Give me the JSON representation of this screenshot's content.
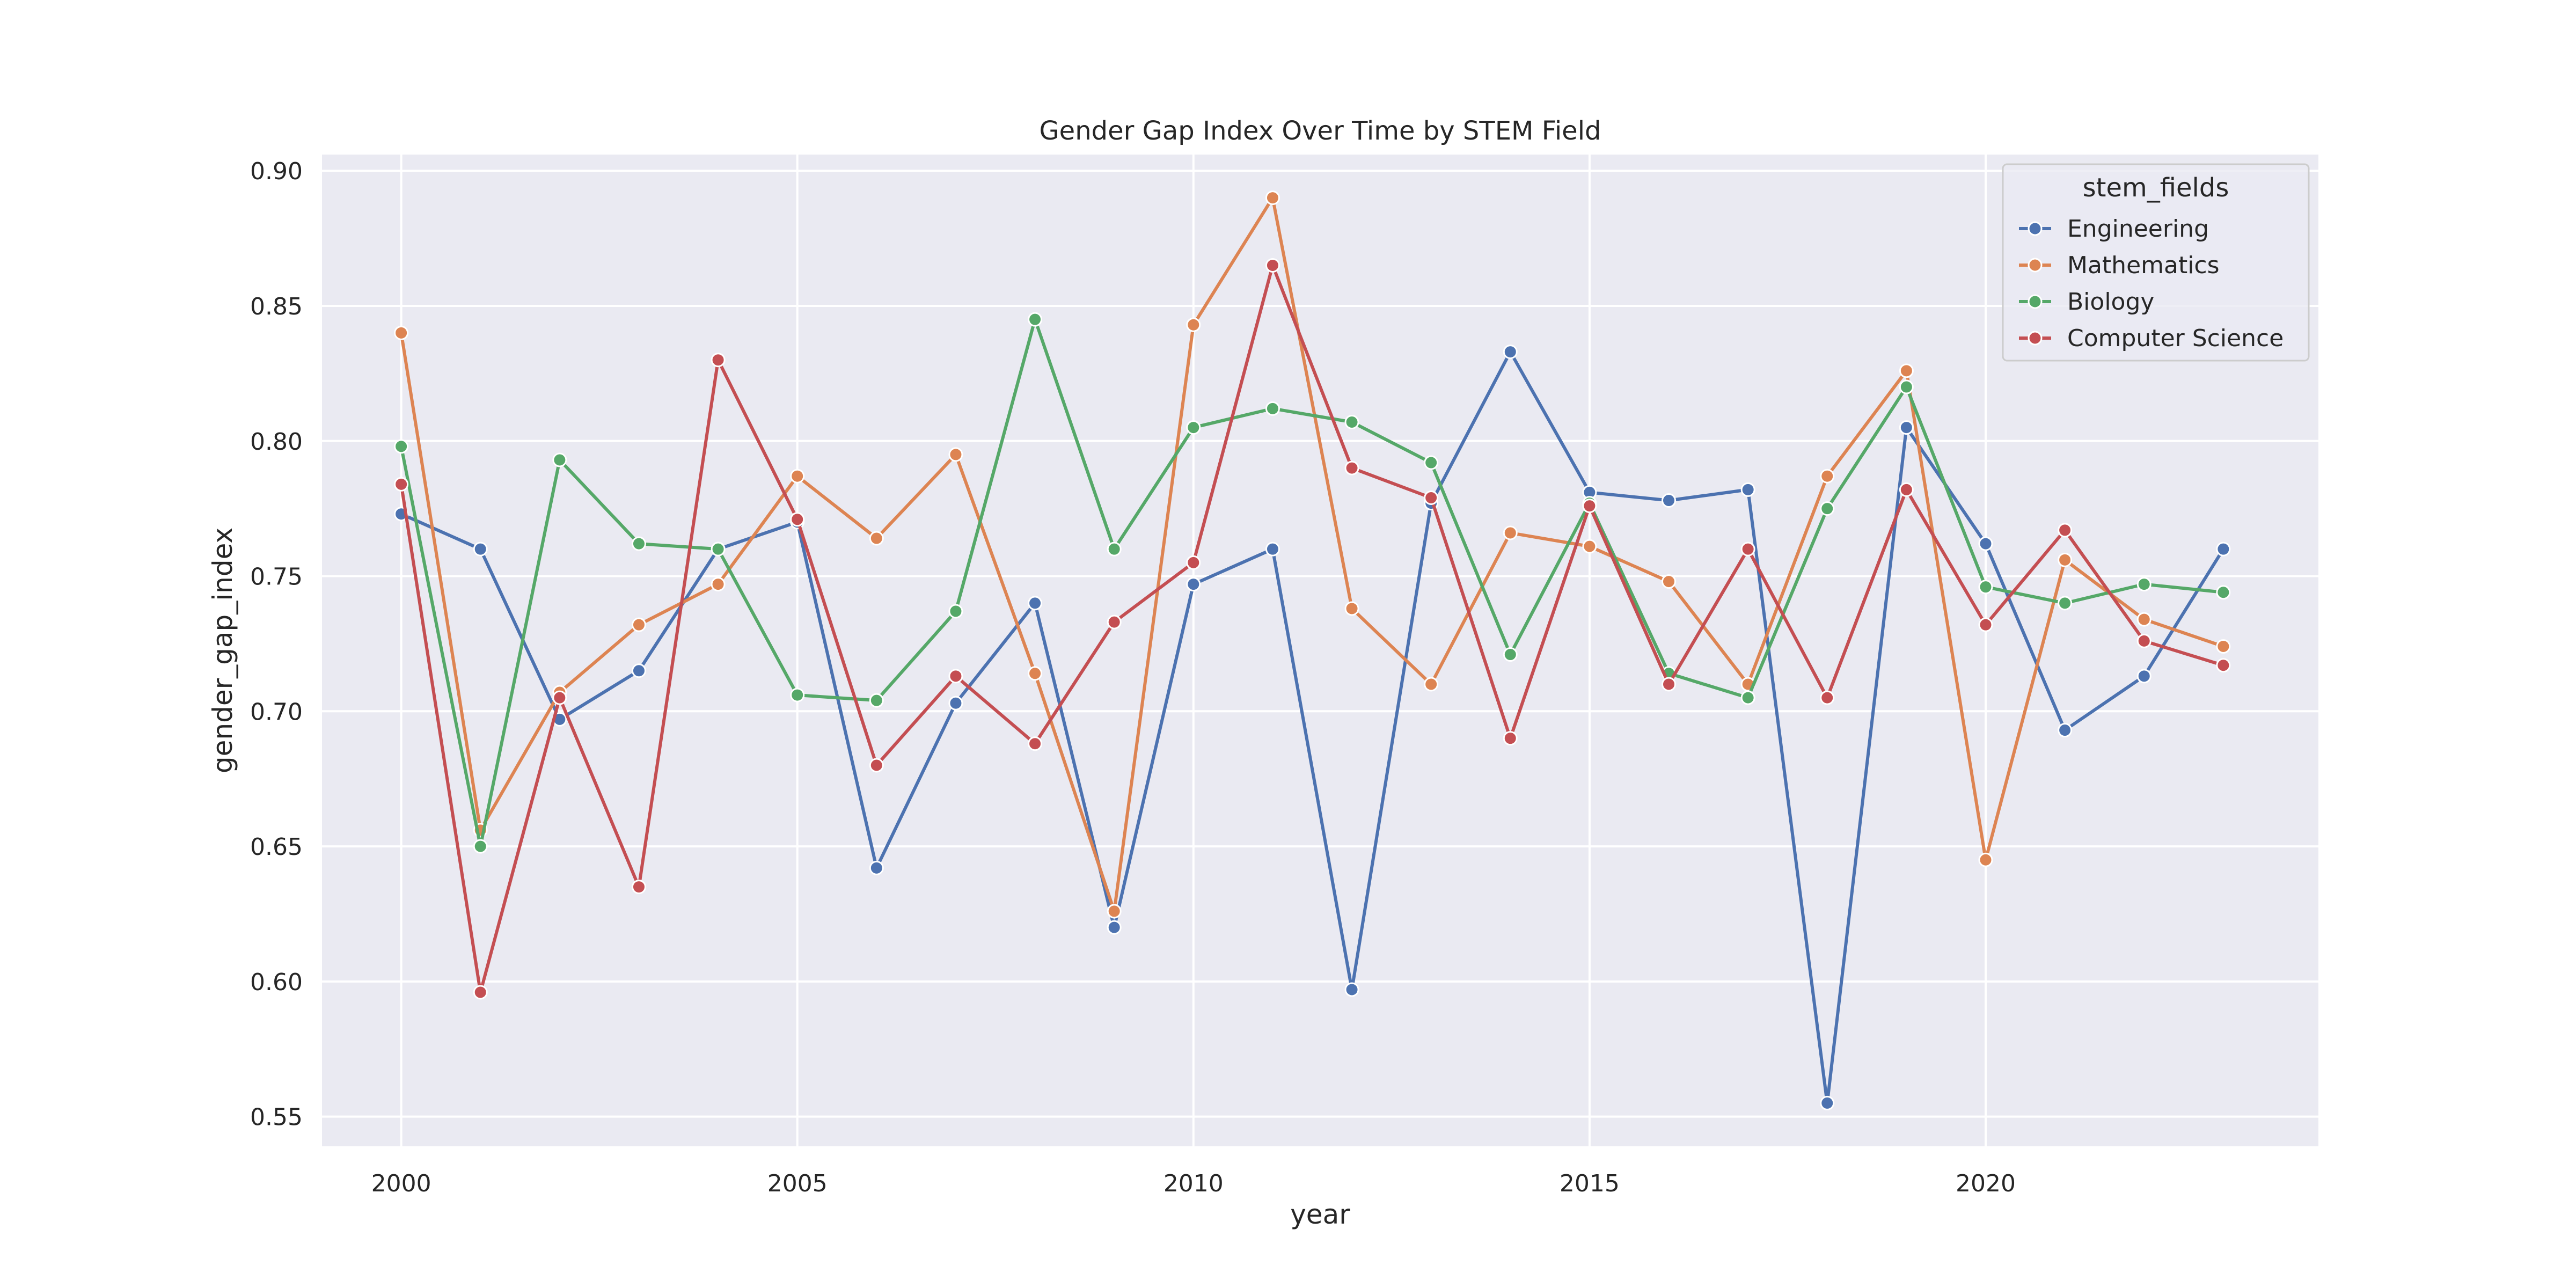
{
  "chart_data": {
    "type": "line",
    "title": "Gender Gap Index Over Time by STEM Field",
    "xlabel": "year",
    "ylabel": "gender_gap_index",
    "xlim": [
      1999,
      2024.2
    ],
    "ylim": [
      0.539,
      0.906
    ],
    "xticks": [
      2000,
      2005,
      2010,
      2015,
      2020
    ],
    "yticks": [
      0.55,
      0.6,
      0.65,
      0.7,
      0.75,
      0.8,
      0.85,
      0.9
    ],
    "ytick_labels": [
      "0.55",
      "0.60",
      "0.65",
      "0.70",
      "0.75",
      "0.80",
      "0.85",
      "0.90"
    ],
    "grid": true,
    "legend": {
      "title": "stem_fields",
      "placement": "top-right"
    },
    "x": [
      2000,
      2001,
      2002,
      2003,
      2004,
      2005,
      2006,
      2007,
      2008,
      2009,
      2010,
      2011,
      2012,
      2013,
      2014,
      2015,
      2016,
      2017,
      2018,
      2019,
      2020,
      2021,
      2022,
      2023
    ],
    "series": [
      {
        "name": "Engineering",
        "color": "#4c72b0",
        "values": [
          0.773,
          0.76,
          0.697,
          0.715,
          0.76,
          0.77,
          0.642,
          0.703,
          0.74,
          0.62,
          0.747,
          0.76,
          0.597,
          0.777,
          0.833,
          0.781,
          0.778,
          0.782,
          0.555,
          0.805,
          0.762,
          0.693,
          0.713,
          0.76
        ]
      },
      {
        "name": "Mathematics",
        "color": "#dd8452",
        "values": [
          0.84,
          0.656,
          0.707,
          0.732,
          0.747,
          0.787,
          0.764,
          0.795,
          0.714,
          0.626,
          0.843,
          0.89,
          0.738,
          0.71,
          0.766,
          0.761,
          0.748,
          0.71,
          0.787,
          0.826,
          0.645,
          0.756,
          0.734,
          0.724
        ]
      },
      {
        "name": "Biology",
        "color": "#55a868",
        "values": [
          0.798,
          0.65,
          0.793,
          0.762,
          0.76,
          0.706,
          0.704,
          0.737,
          0.845,
          0.76,
          0.805,
          0.812,
          0.807,
          0.792,
          0.721,
          0.777,
          0.714,
          0.705,
          0.775,
          0.82,
          0.746,
          0.74,
          0.747,
          0.744
        ]
      },
      {
        "name": "Computer Science",
        "color": "#c44e52",
        "values": [
          0.784,
          0.596,
          0.705,
          0.635,
          0.83,
          0.771,
          0.68,
          0.713,
          0.688,
          0.733,
          0.755,
          0.865,
          0.79,
          0.779,
          0.69,
          0.776,
          0.71,
          0.76,
          0.705,
          0.782,
          0.732,
          0.767,
          0.726,
          0.717
        ]
      }
    ],
    "colors": {
      "plot_background": "#eaeaf2",
      "grid": "#ffffff",
      "figure_background": "#ffffff"
    }
  }
}
